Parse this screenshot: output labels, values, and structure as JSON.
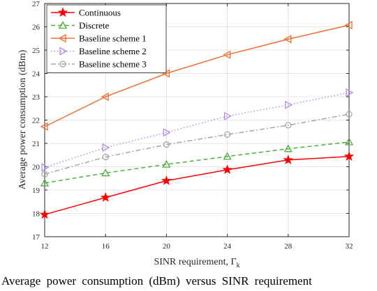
{
  "chart_data": {
    "type": "line",
    "xlabel": "SINR requirement, Γ",
    "xlabel_sub": "k",
    "ylabel": "Average power consumption (dBm)",
    "x": [
      12,
      16,
      20,
      24,
      28,
      32
    ],
    "xticks": [
      "12",
      "16",
      "20",
      "24",
      "28",
      "32"
    ],
    "yticks": [
      "17",
      "18",
      "19",
      "20",
      "21",
      "22",
      "23",
      "24",
      "25",
      "26",
      "27"
    ],
    "xlim": [
      12,
      32
    ],
    "ylim": [
      17,
      27
    ],
    "grid": true,
    "legend_position": "top-left",
    "series": [
      {
        "name": "Continuous",
        "values": [
          17.95,
          18.68,
          19.4,
          19.87,
          20.29,
          20.44
        ],
        "color": "#ff0000",
        "marker": "star",
        "line": "solid"
      },
      {
        "name": "Discrete",
        "values": [
          19.3,
          19.73,
          20.1,
          20.44,
          20.77,
          21.06
        ],
        "color": "#4caf3a",
        "marker": "triangle-up",
        "line": "dashed"
      },
      {
        "name": "Baseline scheme 1",
        "values": [
          21.72,
          23.0,
          24.0,
          24.8,
          25.47,
          26.07
        ],
        "color": "#f07030",
        "marker": "triangle-left",
        "line": "solid"
      },
      {
        "name": "Baseline scheme 2",
        "values": [
          19.97,
          20.82,
          21.47,
          22.17,
          22.65,
          23.18
        ],
        "color": "#b38ce6",
        "marker": "triangle-right",
        "line": "dotted"
      },
      {
        "name": "Baseline scheme 3",
        "values": [
          19.68,
          20.42,
          20.95,
          21.38,
          21.78,
          22.25
        ],
        "color": "#a6a6a6",
        "marker": "circle",
        "line": "dashdot"
      }
    ]
  },
  "caption": "Average power consumption (dBm) versus SINR requirement"
}
